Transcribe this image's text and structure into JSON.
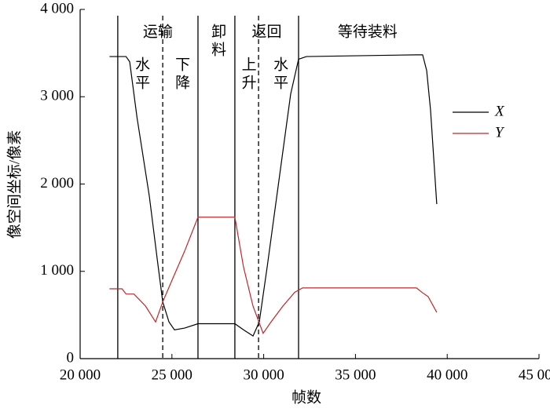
{
  "chart_data": {
    "type": "line",
    "x_label": "帧数",
    "y_label": "像空间坐标/像素",
    "xlim": [
      20000,
      45000
    ],
    "ylim": [
      0,
      4000
    ],
    "xticks": [
      {
        "value": 20000,
        "label": "20 000"
      },
      {
        "value": 25000,
        "label": "25 000"
      },
      {
        "value": 30000,
        "label": "30 000"
      },
      {
        "value": 35000,
        "label": "35 000"
      },
      {
        "value": 40000,
        "label": "40 000"
      },
      {
        "value": 45000,
        "label": "45 000"
      }
    ],
    "yticks": [
      0,
      {
        "value": 1000,
        "label": "1 000"
      },
      {
        "value": 2000,
        "label": "2 000"
      },
      {
        "value": 3000,
        "label": "3 000"
      },
      {
        "value": 4000,
        "label": "4 000"
      }
    ],
    "boundaries": [
      22050,
      24500,
      26420,
      28430,
      29720,
      31900
    ],
    "boundary_styles": [
      "solid",
      "dashed",
      "solid",
      "solid",
      "dashed",
      "solid"
    ],
    "stages": [
      "运输",
      "卸料",
      "返回",
      "等待装料"
    ],
    "substages": [
      "水平",
      "下降",
      "上升",
      "水平"
    ],
    "series": [
      {
        "name": "X",
        "color": "#000000",
        "x": [
          21600,
          22500,
          22700,
          23100,
          23770,
          24200,
          24500,
          24840,
          25140,
          25690,
          26420,
          28430,
          28900,
          29420,
          29760,
          30190,
          30830,
          31470,
          31900,
          32330,
          38320,
          38660,
          38880,
          39090,
          39430
        ],
        "values": [
          3460,
          3460,
          3400,
          2760,
          1860,
          1140,
          650,
          420,
          330,
          350,
          400,
          400,
          330,
          260,
          420,
          1050,
          2040,
          3030,
          3430,
          3460,
          3480,
          3480,
          3300,
          2850,
          1770
        ]
      },
      {
        "name": "Y",
        "color": "#c0272d",
        "x": [
          21600,
          22280,
          22500,
          22930,
          23570,
          24110,
          24500,
          25050,
          25690,
          26420,
          28430,
          28900,
          29420,
          29970,
          30400,
          31040,
          31690,
          32120,
          38320,
          38620,
          38960,
          39430
        ],
        "values": [
          800,
          800,
          740,
          740,
          600,
          420,
          650,
          920,
          1230,
          1620,
          1620,
          1050,
          600,
          290,
          420,
          600,
          760,
          810,
          810,
          760,
          710,
          530
        ]
      }
    ]
  }
}
